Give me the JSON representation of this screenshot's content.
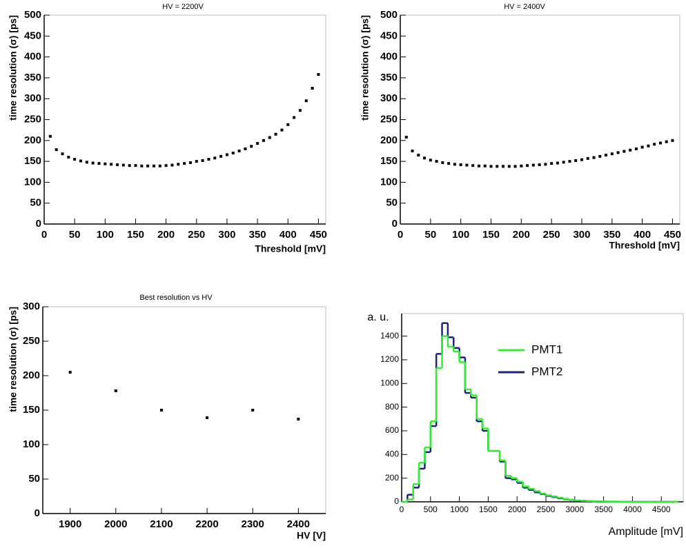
{
  "chart_data": [
    {
      "type": "scatter",
      "title": "HV = 2200V",
      "xlabel": "Threshold [mV]",
      "ylabel": "time resolution  (σ) [ps]",
      "color": "#000000",
      "x": [
        10,
        20,
        30,
        40,
        50,
        60,
        70,
        80,
        90,
        100,
        110,
        120,
        130,
        140,
        150,
        160,
        170,
        180,
        190,
        200,
        210,
        220,
        230,
        240,
        250,
        260,
        270,
        280,
        290,
        300,
        310,
        320,
        330,
        340,
        350,
        360,
        370,
        380,
        390,
        400,
        410,
        420,
        430,
        440,
        450
      ],
      "values": [
        210,
        178,
        168,
        160,
        155,
        151,
        148,
        146,
        145,
        144,
        143,
        142,
        141,
        140,
        140,
        139,
        139,
        139,
        139,
        140,
        141,
        143,
        145,
        147,
        150,
        152,
        155,
        158,
        162,
        166,
        170,
        175,
        180,
        186,
        193,
        200,
        207,
        215,
        225,
        238,
        255,
        272,
        295,
        325,
        358
      ],
      "xlim": [
        0,
        462
      ],
      "ylim": [
        0,
        500
      ],
      "xticks": [
        0,
        50,
        100,
        150,
        200,
        250,
        300,
        350,
        400,
        450
      ],
      "yticks": [
        0,
        50,
        100,
        150,
        200,
        250,
        300,
        350,
        400,
        450,
        500
      ]
    },
    {
      "type": "scatter",
      "title": "HV = 2400V",
      "xlabel": "Threshold [mV]",
      "ylabel": "time resolution  (σ) [ps]",
      "color": "#000000",
      "x": [
        10,
        20,
        30,
        40,
        50,
        60,
        70,
        80,
        90,
        100,
        110,
        120,
        130,
        140,
        150,
        160,
        170,
        180,
        190,
        200,
        210,
        220,
        230,
        240,
        250,
        260,
        270,
        280,
        290,
        300,
        310,
        320,
        330,
        340,
        350,
        360,
        370,
        380,
        390,
        400,
        410,
        420,
        430,
        440,
        450
      ],
      "values": [
        208,
        175,
        165,
        158,
        153,
        150,
        147,
        145,
        143,
        142,
        141,
        140,
        139,
        139,
        138,
        138,
        138,
        138,
        138,
        139,
        140,
        141,
        142,
        143,
        145,
        146,
        148,
        150,
        152,
        154,
        157,
        159,
        162,
        165,
        168,
        171,
        174,
        177,
        180,
        184,
        187,
        191,
        194,
        197,
        200
      ],
      "xlim": [
        0,
        462
      ],
      "ylim": [
        0,
        500
      ],
      "xticks": [
        0,
        50,
        100,
        150,
        200,
        250,
        300,
        350,
        400,
        450
      ],
      "yticks": [
        0,
        50,
        100,
        150,
        200,
        250,
        300,
        350,
        400,
        450,
        500
      ]
    },
    {
      "type": "scatter",
      "title": "Best resolution vs HV",
      "xlabel": "HV [V]",
      "ylabel": "time resolution  (σ) [ps]",
      "color": "#000000",
      "x": [
        1900,
        2000,
        2100,
        2200,
        2300,
        2400
      ],
      "values": [
        205,
        178,
        150,
        139,
        150,
        137
      ],
      "xlim": [
        1840,
        2460
      ],
      "ylim": [
        0,
        300
      ],
      "xticks": [
        1900,
        2000,
        2100,
        2200,
        2300,
        2400
      ],
      "yticks": [
        0,
        50,
        100,
        150,
        200,
        250,
        300
      ]
    },
    {
      "type": "histogram",
      "xlabel": "Amplitude [mV]",
      "ylabel": "a. u.",
      "bins": [
        0,
        100,
        200,
        300,
        400,
        500,
        600,
        700,
        800,
        900,
        1000,
        1100,
        1200,
        1300,
        1400,
        1500,
        1600,
        1700,
        1800,
        1900,
        2000,
        2100,
        2200,
        2300,
        2400,
        2500,
        2600,
        2700,
        2800,
        2900,
        3000,
        3100,
        3200,
        3300,
        3400,
        3500,
        3600,
        3700,
        3800,
        3900,
        4000,
        4100,
        4200,
        4300,
        4400,
        4500,
        4600,
        4700,
        4800
      ],
      "series": [
        {
          "name": "PMT1",
          "color": "#33ee33",
          "values": [
            0,
            20,
            150,
            330,
            460,
            680,
            1130,
            1400,
            1310,
            1270,
            1180,
            950,
            900,
            700,
            620,
            430,
            430,
            350,
            220,
            200,
            170,
            130,
            110,
            90,
            70,
            55,
            45,
            35,
            25,
            18,
            12,
            9,
            7,
            5,
            4,
            3,
            2,
            2,
            1,
            0,
            0,
            0,
            0,
            0,
            0,
            0,
            0,
            0
          ]
        },
        {
          "name": "PMT2",
          "color": "#1a237e",
          "values": [
            0,
            60,
            120,
            280,
            420,
            640,
            1250,
            1510,
            1390,
            1300,
            1220,
            920,
            880,
            680,
            600,
            430,
            430,
            340,
            200,
            190,
            160,
            120,
            100,
            80,
            65,
            50,
            40,
            30,
            22,
            16,
            10,
            8,
            6,
            4,
            3,
            2,
            2,
            1,
            1,
            0,
            0,
            0,
            0,
            0,
            0,
            0,
            0,
            0
          ]
        }
      ],
      "xlim": [
        0,
        4880
      ],
      "ylim": [
        0,
        1590
      ],
      "xticks": [
        0,
        500,
        1000,
        1500,
        2000,
        2500,
        3000,
        3500,
        4000,
        4500
      ],
      "yticks": [
        0,
        200,
        400,
        600,
        800,
        1000,
        1200,
        1400
      ]
    }
  ]
}
